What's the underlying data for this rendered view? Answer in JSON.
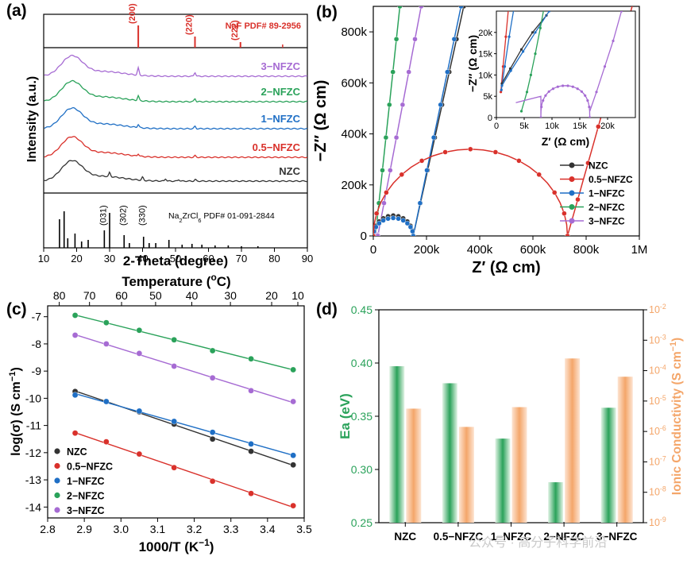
{
  "watermark": "公众号 · 高分子科学前沿",
  "chart_data": [
    {
      "panel": "(a)",
      "type": "line",
      "xlabel": "2-Theta (degree)",
      "ylabel": "Intensity (a.u.)",
      "xlim": [
        10,
        90
      ],
      "xticks": [
        10,
        20,
        30,
        40,
        50,
        60,
        70,
        80,
        90
      ],
      "reference_top": {
        "label": "NaF PDF# 89-2956",
        "peaks": [
          {
            "x": 38.7,
            "label": "(200)"
          },
          {
            "x": 55.9,
            "label": "(220)"
          },
          {
            "x": 69.7,
            "label": "(222)"
          }
        ]
      },
      "reference_bottom": {
        "label": "Na",
        "label_sub": "2",
        "label_mid": "ZrCl",
        "label_sub2": "6",
        "label_end": " PDF# 01-091-2844",
        "peak_labels": [
          {
            "x": 28.4,
            "label": "(031)"
          },
          {
            "x": 34.4,
            "label": "(302)"
          },
          {
            "x": 40.3,
            "label": "(330)"
          }
        ]
      },
      "series": [
        {
          "name": "NZC",
          "color": "#333333"
        },
        {
          "name": "0.5−NFZC",
          "color": "#d9312b"
        },
        {
          "name": "1−NFZC",
          "color": "#1f6fc5"
        },
        {
          "name": "2−NFZC",
          "color": "#2aa25a"
        },
        {
          "name": "3−NFZC",
          "color": "#a66bd3"
        }
      ]
    },
    {
      "panel": "(b)",
      "type": "scatter",
      "xlabel": "Z′ (Ω cm)",
      "ylabel": "−Z″ (Ω cm)",
      "xlim": [
        0,
        1000000
      ],
      "ylim": [
        0,
        900000
      ],
      "xtick_labels": [
        "0",
        "200k",
        "400k",
        "600k",
        "800k",
        "1M"
      ],
      "ytick_labels": [
        "0",
        "200k",
        "400k",
        "600k",
        "800k"
      ],
      "series": [
        {
          "name": "NZC",
          "color": "#333333",
          "arc_end": 150000,
          "arc_height": 80000,
          "spike_end": [
            340000,
            900000
          ]
        },
        {
          "name": "0.5−NFZC",
          "color": "#d9312b",
          "arc_end": 730000,
          "arc_height": 340000,
          "spike_end": [
            1000000,
            1000000
          ]
        },
        {
          "name": "1−NFZC",
          "color": "#1f6fc5",
          "arc_end": 150000,
          "arc_height": 70000,
          "spike_end": [
            330000,
            900000
          ]
        },
        {
          "name": "2−NFZC",
          "color": "#2aa25a",
          "arc_end": 8000,
          "arc_height": 5000,
          "spike_end": [
            100000,
            900000
          ]
        },
        {
          "name": "3−NFZC",
          "color": "#a66bd3",
          "arc_end": 17000,
          "arc_height": 7500,
          "spike_end": [
            180000,
            900000
          ]
        }
      ],
      "inset": {
        "xlabel": "Z′ (Ω cm)",
        "ylabel": "−Z″ (Ω cm)",
        "xlim": [
          0,
          25000
        ],
        "ylim": [
          0,
          25000
        ],
        "xtick_labels": [
          "0",
          "5k",
          "10k",
          "15k",
          "20k"
        ],
        "ytick_labels": [
          "0",
          "5k",
          "10k",
          "15k",
          "20k"
        ]
      }
    },
    {
      "panel": "(c)",
      "type": "scatter",
      "xlabel": "1000/T (K",
      "xlabel_sup": "−1",
      "xlabel_end": ")",
      "ylabel": "log(σ) (S cm",
      "ylabel_sup": "−1",
      "ylabel_end": ")",
      "top_axis_label": "Temperature (",
      "top_axis_deg": "o",
      "top_axis_end": "C)",
      "xlim": [
        2.8,
        3.5
      ],
      "ylim": [
        -14.4,
        -6.6
      ],
      "xticks": [
        2.8,
        2.9,
        3.0,
        3.1,
        3.2,
        3.3,
        3.4,
        3.5
      ],
      "yticks": [
        -7,
        -8,
        -9,
        -10,
        -11,
        -12,
        -13,
        -14
      ],
      "top_ticks": [
        80,
        70,
        60,
        50,
        40,
        30,
        20,
        10
      ],
      "x": [
        2.875,
        2.96,
        3.05,
        3.145,
        3.25,
        3.355,
        3.47
      ],
      "series": [
        {
          "name": "NZC",
          "color": "#333333",
          "values": [
            -9.75,
            -10.12,
            -10.5,
            -10.95,
            -11.5,
            -11.95,
            -12.45
          ]
        },
        {
          "name": "0.5−NFZC",
          "color": "#d9312b",
          "values": [
            -11.28,
            -11.6,
            -12.05,
            -12.55,
            -13.05,
            -13.5,
            -13.95
          ]
        },
        {
          "name": "1−NFZC",
          "color": "#1f6fc5",
          "values": [
            -9.88,
            -10.12,
            -10.47,
            -10.85,
            -11.25,
            -11.68,
            -12.1
          ]
        },
        {
          "name": "2−NFZC",
          "color": "#2aa25a",
          "values": [
            -6.95,
            -7.22,
            -7.5,
            -7.85,
            -8.25,
            -8.55,
            -8.95
          ]
        },
        {
          "name": "3−NFZC",
          "color": "#a66bd3",
          "values": [
            -7.68,
            -8.0,
            -8.35,
            -8.82,
            -9.25,
            -9.72,
            -10.12
          ]
        }
      ]
    },
    {
      "panel": "(d)",
      "type": "bar",
      "categories": [
        "NZC",
        "0.5−NFZC",
        "1−NFZC",
        "2−NFZC",
        "3−NFZC"
      ],
      "ylabel": "Ea (eV)",
      "ylabel_right": "Ionic Conductivity (S cm",
      "ylabel_right_sup": "−1",
      "ylabel_right_end": ")",
      "ylim": [
        0.25,
        0.45
      ],
      "yticks": [
        0.25,
        0.3,
        0.35,
        0.4,
        0.45
      ],
      "ylim_right_log": [
        -9,
        -2
      ],
      "series": [
        {
          "name": "Ea",
          "color": "#2aa25a",
          "axis": "left",
          "values": [
            0.397,
            0.381,
            0.329,
            0.288,
            0.358
          ]
        },
        {
          "name": "Ionic Conductivity",
          "color": "#f4a66a",
          "axis": "right",
          "log10_values": [
            -5.25,
            -5.85,
            -5.2,
            -3.6,
            -4.2
          ]
        }
      ]
    }
  ]
}
